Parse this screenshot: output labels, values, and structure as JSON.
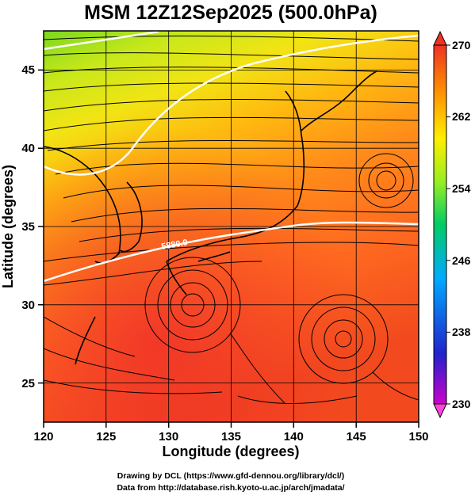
{
  "title": "MSM 12Z12Sep2025 (500.0hPa)",
  "x_axis": {
    "label": "Longitude (degrees)",
    "ticks": [
      "120",
      "125",
      "130",
      "135",
      "140",
      "145",
      "150"
    ],
    "range": [
      120,
      150
    ]
  },
  "y_axis": {
    "label": "Latitude  (degrees)",
    "ticks": [
      "25",
      "30",
      "35",
      "40",
      "45"
    ],
    "range": [
      22.5,
      47.5
    ]
  },
  "colorbar": {
    "ticks": [
      "270",
      "262",
      "254",
      "246",
      "238",
      "230"
    ],
    "range": [
      230,
      270
    ],
    "colors": [
      "#cc00cc",
      "#2222cc",
      "#00aaff",
      "#00cc66",
      "#99ee22",
      "#ffee00",
      "#ff9900",
      "#ee3322"
    ]
  },
  "contour_label": "5880.0",
  "credits": {
    "line1": "Drawing by DCL (https://www.gfd-dennou.org/library/dcl/)",
    "line2": "Data from http://database.rish.kyoto-u.ac.jp/arch/jmadata/"
  }
}
